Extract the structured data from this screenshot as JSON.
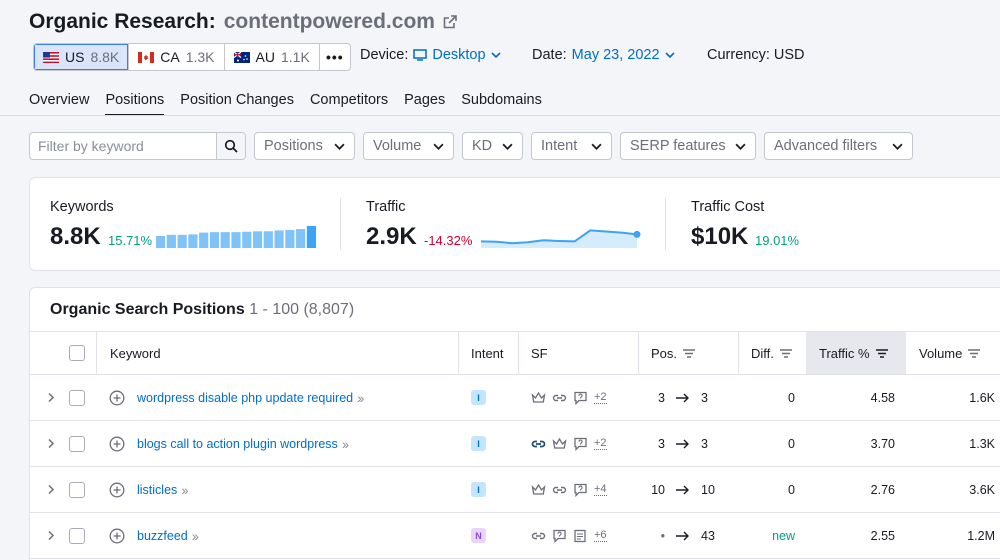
{
  "header": {
    "title": "Organic Research:",
    "domain": "contentpowered.com",
    "databases": [
      {
        "code": "US",
        "count": "8.8K"
      },
      {
        "code": "CA",
        "count": "1.3K"
      },
      {
        "code": "AU",
        "count": "1.1K"
      }
    ],
    "more_label": "•••",
    "device_label": "Device:",
    "device_value": "Desktop",
    "date_label": "Date:",
    "date_value": "May 23, 2022",
    "currency_label": "Currency: USD"
  },
  "tabs": [
    "Overview",
    "Positions",
    "Position Changes",
    "Competitors",
    "Pages",
    "Subdomains"
  ],
  "filters": {
    "search_placeholder": "Filter by keyword",
    "buttons": [
      "Positions",
      "Volume",
      "KD",
      "Intent",
      "SERP features",
      "Advanced filters"
    ]
  },
  "summary": {
    "keywords": {
      "label": "Keywords",
      "value": "8.8K",
      "change": "15.71%"
    },
    "traffic": {
      "label": "Traffic",
      "value": "2.9K",
      "change": "-14.32%"
    },
    "cost": {
      "label": "Traffic Cost",
      "value": "$10K",
      "change": "19.01%"
    },
    "keywords_bars": [
      0.55,
      0.6,
      0.6,
      0.62,
      0.7,
      0.72,
      0.72,
      0.72,
      0.74,
      0.76,
      0.76,
      0.8,
      0.82,
      0.86,
      1.0
    ],
    "traffic_trend": [
      0.3,
      0.28,
      0.22,
      0.26,
      0.35,
      0.32,
      0.3,
      0.8,
      0.75,
      0.7,
      0.62
    ]
  },
  "table": {
    "title": "Organic Search Positions",
    "range": "1 - 100 (8,807)",
    "columns": [
      "Keyword",
      "Intent",
      "SF",
      "Pos.",
      "Diff.",
      "Traffic %",
      "Volume"
    ],
    "rows": [
      {
        "keyword": "wordpress disable php update required",
        "intent": "I",
        "sf_more": "+2",
        "pos_from": "3",
        "pos_to": "3",
        "diff": "0",
        "traffic": "4.58",
        "volume": "1.6K"
      },
      {
        "keyword": "blogs call to action plugin wordpress",
        "intent": "I",
        "sf_more": "+2",
        "pos_from": "3",
        "pos_to": "3",
        "diff": "0",
        "traffic": "3.70",
        "volume": "1.3K"
      },
      {
        "keyword": "listicles",
        "intent": "I",
        "sf_more": "+4",
        "pos_from": "10",
        "pos_to": "10",
        "diff": "0",
        "traffic": "2.76",
        "volume": "3.6K"
      },
      {
        "keyword": "buzzfeed",
        "intent": "N",
        "sf_more": "+6",
        "pos_from": "•",
        "pos_to": "43",
        "diff": "new",
        "traffic": "2.55",
        "volume": "1.2M"
      }
    ]
  },
  "colors": {
    "accent": "#006dca",
    "positive": "#009f81",
    "negative": "#d1002f",
    "bar": "#80c3f8",
    "bar_last": "#3da3f4"
  }
}
